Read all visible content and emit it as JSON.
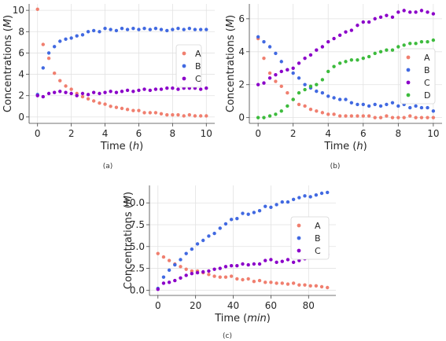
{
  "chart_data": [
    {
      "type": "scatter",
      "panel_caption": "(a)",
      "xlabel_prefix": "Time (",
      "xlabel_unit": "h",
      "xlabel_suffix": ")",
      "ylabel_prefix": "Concentrations (",
      "ylabel_unit": "M",
      "ylabel_suffix": ")",
      "xlim": [
        -0.5,
        10.5
      ],
      "ylim": [
        -0.6,
        10.6
      ],
      "xticks": [
        0,
        2,
        4,
        6,
        8,
        10
      ],
      "yticks": [
        0,
        2,
        4,
        6,
        8,
        10
      ],
      "grid": true,
      "legend_position": "center-right",
      "series": [
        {
          "name": "A",
          "color": "#f07f6f",
          "x": [
            0,
            0.33,
            0.67,
            1,
            1.33,
            1.67,
            2,
            2.33,
            2.67,
            3,
            3.33,
            3.67,
            4,
            4.33,
            4.67,
            5,
            5.33,
            5.67,
            6,
            6.33,
            6.67,
            7,
            7.33,
            7.67,
            8,
            8.33,
            8.67,
            9,
            9.33,
            9.67,
            10
          ],
          "y": [
            10.1,
            6.8,
            5.5,
            4.1,
            3.4,
            2.9,
            2.6,
            2.2,
            1.9,
            1.7,
            1.5,
            1.3,
            1.2,
            1.0,
            0.9,
            0.8,
            0.7,
            0.6,
            0.6,
            0.4,
            0.4,
            0.4,
            0.3,
            0.2,
            0.2,
            0.2,
            0.1,
            0.2,
            0.1,
            0.1,
            0.1
          ]
        },
        {
          "name": "B",
          "color": "#4169e1",
          "x": [
            0,
            0.33,
            0.67,
            1,
            1.33,
            1.67,
            2,
            2.33,
            2.67,
            3,
            3.33,
            3.67,
            4,
            4.33,
            4.67,
            5,
            5.33,
            5.67,
            6,
            6.33,
            6.67,
            7,
            7.33,
            7.67,
            8,
            8.33,
            8.67,
            9,
            9.33,
            9.67,
            10
          ],
          "y": [
            2.1,
            4.6,
            6.0,
            6.6,
            7.1,
            7.3,
            7.4,
            7.6,
            7.7,
            8.0,
            8.1,
            8.0,
            8.3,
            8.2,
            8.1,
            8.3,
            8.2,
            8.3,
            8.2,
            8.3,
            8.2,
            8.3,
            8.2,
            8.1,
            8.2,
            8.3,
            8.2,
            8.3,
            8.2,
            8.2,
            8.2
          ]
        },
        {
          "name": "C",
          "color": "#8b00c9",
          "x": [
            0,
            0.33,
            0.67,
            1,
            1.33,
            1.67,
            2,
            2.33,
            2.67,
            3,
            3.33,
            3.67,
            4,
            4.33,
            4.67,
            5,
            5.33,
            5.67,
            6,
            6.33,
            6.67,
            7,
            7.33,
            7.67,
            8,
            8.33,
            8.67,
            9,
            9.33,
            9.67,
            10
          ],
          "y": [
            2.0,
            1.9,
            2.2,
            2.3,
            2.4,
            2.3,
            2.2,
            2.0,
            2.2,
            2.1,
            2.3,
            2.2,
            2.3,
            2.4,
            2.3,
            2.4,
            2.5,
            2.4,
            2.5,
            2.6,
            2.5,
            2.6,
            2.6,
            2.7,
            2.7,
            2.6,
            2.7,
            2.7,
            2.7,
            2.6,
            2.7
          ]
        }
      ]
    },
    {
      "type": "scatter",
      "panel_caption": "(b)",
      "xlabel_prefix": "Time (",
      "xlabel_unit": "h",
      "xlabel_suffix": ")",
      "ylabel_prefix": "Concentrations (",
      "ylabel_unit": "M",
      "ylabel_suffix": ")",
      "xlim": [
        -0.5,
        10.5
      ],
      "ylim": [
        -0.35,
        6.9
      ],
      "xticks": [
        0,
        2,
        4,
        6,
        8,
        10
      ],
      "yticks": [
        0,
        2,
        4,
        6
      ],
      "grid": true,
      "legend_position": "center-right",
      "series": [
        {
          "name": "A",
          "color": "#f07f6f",
          "x": [
            0,
            0.33,
            0.67,
            1,
            1.33,
            1.67,
            2,
            2.33,
            2.67,
            3,
            3.33,
            3.67,
            4,
            4.33,
            4.67,
            5,
            5.33,
            5.67,
            6,
            6.33,
            6.67,
            7,
            7.33,
            7.67,
            8,
            8.33,
            8.67,
            9,
            9.33,
            9.67,
            10
          ],
          "y": [
            4.8,
            3.6,
            2.7,
            2.2,
            1.9,
            1.5,
            1.1,
            0.8,
            0.7,
            0.5,
            0.4,
            0.3,
            0.2,
            0.2,
            0.1,
            0.1,
            0.1,
            0.1,
            0.1,
            0.1,
            0.0,
            0.0,
            0.1,
            0.0,
            0.0,
            0.0,
            0.1,
            0.0,
            0.0,
            0.0,
            0.0
          ]
        },
        {
          "name": "B",
          "color": "#4169e1",
          "x": [
            0,
            0.33,
            0.67,
            1,
            1.33,
            1.67,
            2,
            2.33,
            2.67,
            3,
            3.33,
            3.67,
            4,
            4.33,
            4.67,
            5,
            5.33,
            5.67,
            6,
            6.33,
            6.67,
            7,
            7.33,
            7.67,
            8,
            8.33,
            8.67,
            9,
            9.33,
            9.67,
            10
          ],
          "y": [
            4.9,
            4.6,
            4.3,
            3.9,
            3.4,
            2.9,
            2.7,
            2.4,
            2.0,
            1.8,
            1.6,
            1.5,
            1.3,
            1.2,
            1.1,
            1.1,
            0.9,
            0.8,
            0.8,
            0.7,
            0.8,
            0.7,
            0.8,
            0.9,
            0.7,
            0.8,
            0.6,
            0.7,
            0.6,
            0.6,
            0.4
          ]
        },
        {
          "name": "C",
          "color": "#8b00c9",
          "x": [
            0,
            0.33,
            0.67,
            1,
            1.33,
            1.67,
            2,
            2.33,
            2.67,
            3,
            3.33,
            3.67,
            4,
            4.33,
            4.67,
            5,
            5.33,
            5.67,
            6,
            6.33,
            6.67,
            7,
            7.33,
            7.67,
            8,
            8.33,
            8.67,
            9,
            9.33,
            9.67,
            10
          ],
          "y": [
            2.0,
            2.1,
            2.4,
            2.6,
            2.8,
            2.9,
            3.0,
            3.3,
            3.6,
            3.8,
            4.1,
            4.3,
            4.6,
            4.8,
            5.0,
            5.2,
            5.3,
            5.6,
            5.8,
            5.8,
            6.0,
            6.1,
            6.2,
            6.1,
            6.4,
            6.5,
            6.4,
            6.4,
            6.5,
            6.4,
            6.3
          ]
        },
        {
          "name": "D",
          "color": "#3dbb3d",
          "x": [
            0,
            0.33,
            0.67,
            1,
            1.33,
            1.67,
            2,
            2.33,
            2.67,
            3,
            3.33,
            3.67,
            4,
            4.33,
            4.67,
            5,
            5.33,
            5.67,
            6,
            6.33,
            6.67,
            7,
            7.33,
            7.67,
            8,
            8.33,
            8.67,
            9,
            9.33,
            9.67,
            10
          ],
          "y": [
            0.0,
            0.0,
            0.1,
            0.2,
            0.4,
            0.7,
            1.1,
            1.5,
            1.7,
            1.9,
            2.0,
            2.3,
            2.8,
            3.1,
            3.3,
            3.4,
            3.5,
            3.5,
            3.6,
            3.7,
            3.9,
            4.0,
            4.1,
            4.1,
            4.3,
            4.4,
            4.5,
            4.5,
            4.6,
            4.6,
            4.7
          ]
        }
      ]
    },
    {
      "type": "scatter",
      "panel_caption": "(c)",
      "xlabel_prefix": "Time (",
      "xlabel_unit": "min",
      "xlabel_suffix": ")",
      "ylabel_prefix": "Concentrations (",
      "ylabel_unit": "M",
      "ylabel_suffix": ")",
      "xlim": [
        -4.5,
        94.5
      ],
      "ylim": [
        -0.6,
        12.0
      ],
      "xticks": [
        0,
        20,
        40,
        60,
        80
      ],
      "yticks": [
        0.0,
        2.5,
        5.0,
        7.5,
        10.0
      ],
      "ytick_labels": [
        "0.0",
        "2.5",
        "5.0",
        "7.5",
        "10.0"
      ],
      "grid": true,
      "legend_position": "center-right",
      "series": [
        {
          "name": "A",
          "color": "#f07f6f",
          "x": [
            0,
            3,
            6,
            9,
            12,
            15,
            18,
            21,
            24,
            27,
            30,
            33,
            36,
            39,
            42,
            45,
            48,
            51,
            54,
            57,
            60,
            63,
            66,
            69,
            72,
            75,
            78,
            81,
            84,
            87,
            90
          ],
          "y": [
            4.2,
            3.8,
            3.4,
            3.0,
            2.7,
            2.4,
            2.2,
            2.2,
            2.0,
            1.8,
            1.6,
            1.5,
            1.5,
            1.6,
            1.3,
            1.2,
            1.3,
            1.0,
            1.1,
            0.9,
            0.9,
            0.8,
            0.8,
            0.7,
            0.8,
            0.6,
            0.6,
            0.5,
            0.5,
            0.4,
            0.3
          ]
        },
        {
          "name": "B",
          "color": "#4169e1",
          "x": [
            0,
            3,
            6,
            9,
            12,
            15,
            18,
            21,
            24,
            27,
            30,
            33,
            36,
            39,
            42,
            45,
            48,
            51,
            54,
            57,
            60,
            63,
            66,
            69,
            72,
            75,
            78,
            81,
            84,
            87,
            90
          ],
          "y": [
            0.2,
            1.5,
            2.3,
            2.9,
            3.5,
            4.2,
            4.7,
            5.3,
            5.7,
            6.2,
            6.5,
            7.1,
            7.6,
            8.1,
            8.2,
            8.8,
            8.7,
            8.9,
            9.1,
            9.6,
            9.5,
            9.8,
            10.1,
            10.1,
            10.4,
            10.6,
            10.8,
            10.7,
            10.9,
            11.1,
            11.2
          ]
        },
        {
          "name": "C",
          "color": "#8b00c9",
          "x": [
            0,
            3,
            6,
            9,
            12,
            15,
            18,
            21,
            24,
            27,
            30,
            33,
            36,
            39,
            42,
            45,
            48,
            51,
            54,
            57,
            60,
            63,
            66,
            69,
            72,
            75,
            78,
            81,
            84,
            87,
            90
          ],
          "y": [
            0.1,
            0.8,
            0.9,
            1.1,
            1.4,
            1.7,
            1.9,
            2.0,
            2.1,
            2.2,
            2.4,
            2.5,
            2.7,
            2.8,
            2.8,
            3.0,
            2.9,
            3.0,
            3.0,
            3.4,
            3.5,
            3.2,
            3.3,
            3.5,
            3.2,
            3.4,
            3.6,
            3.8,
            3.9,
            4.0,
            4.1
          ]
        }
      ]
    }
  ]
}
